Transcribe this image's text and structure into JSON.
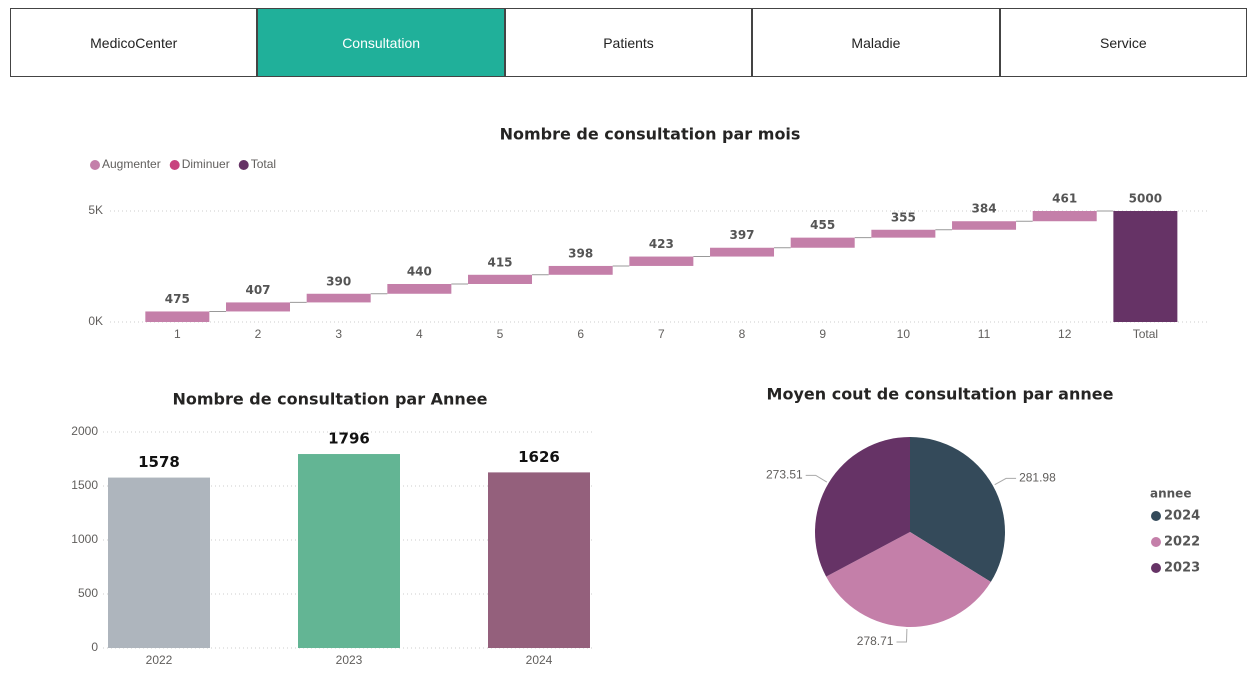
{
  "nav": {
    "tabs": [
      "MedicoCenter",
      "Consultation",
      "Patients",
      "Maladie",
      "Service"
    ],
    "active_tab": 1,
    "active_color": "#20b09a"
  },
  "chart_data": [
    {
      "type": "waterfall",
      "title": "Nombre de consultation par mois",
      "legend": [
        {
          "name": "Augmenter",
          "color": "#c47fa9"
        },
        {
          "name": "Diminuer",
          "color": "#c8437e"
        },
        {
          "name": "Total",
          "color": "#663366"
        }
      ],
      "categories": [
        "1",
        "2",
        "3",
        "4",
        "5",
        "6",
        "7",
        "8",
        "9",
        "10",
        "11",
        "12"
      ],
      "values": [
        475,
        407,
        390,
        440,
        415,
        398,
        423,
        397,
        455,
        355,
        384,
        461
      ],
      "total": {
        "label": "Total",
        "value": 5000
      },
      "ylim": [
        0,
        5000
      ],
      "yticks": [
        {
          "value": 0,
          "label": "0K"
        },
        {
          "value": 5000,
          "label": "5K"
        }
      ],
      "grid": true
    },
    {
      "type": "bar",
      "title": "Nombre de consultation par Annee",
      "categories": [
        "2022",
        "2023",
        "2024"
      ],
      "values": [
        1578,
        1796,
        1626
      ],
      "colors": [
        "#aeb5bd",
        "#63b594",
        "#94607c"
      ],
      "ylim": [
        0,
        2000
      ],
      "yticks": [
        0,
        500,
        1000,
        1500,
        2000
      ],
      "grid": true
    },
    {
      "type": "pie",
      "title": "Moyen cout de consultation par annee",
      "legend_title": "annee",
      "categories": [
        "2024",
        "2022",
        "2023"
      ],
      "values": [
        281.98,
        278.71,
        273.51
      ],
      "colors": [
        "#344a5a",
        "#c47fa9",
        "#663366"
      ]
    }
  ]
}
